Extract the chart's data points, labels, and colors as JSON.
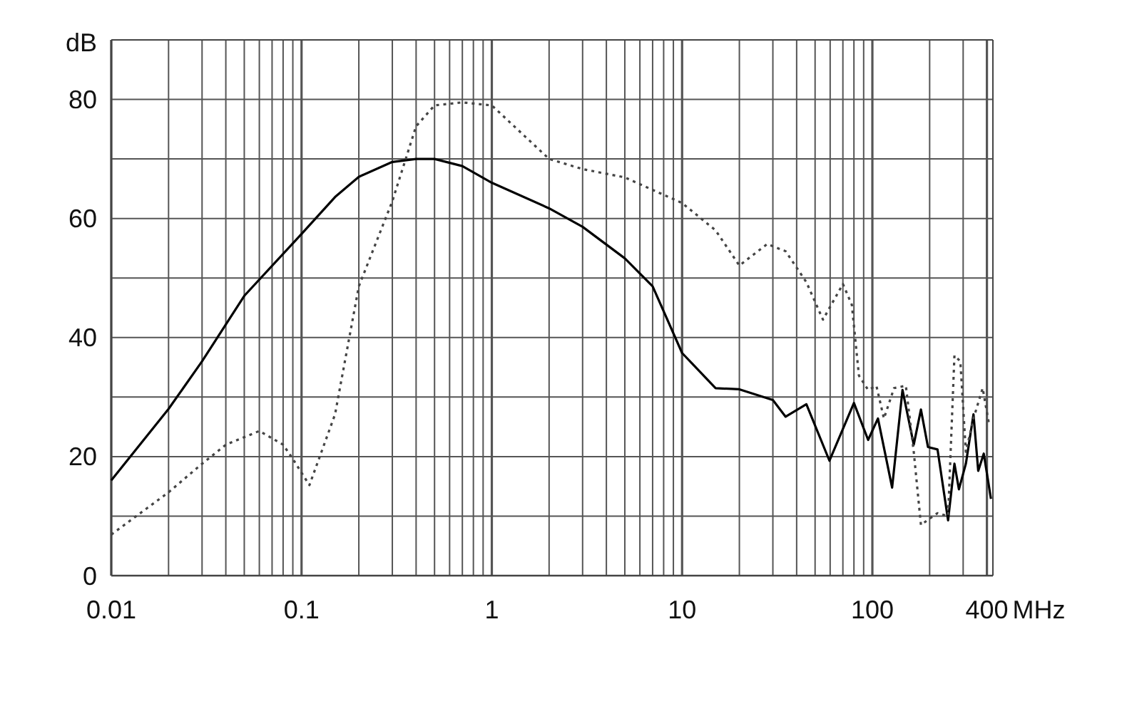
{
  "chart_data": {
    "type": "line",
    "xlabel": "MHz",
    "ylabel": "dB",
    "log": "x",
    "grid": true,
    "xlim": [
      0.01,
      430
    ],
    "ylim": [
      0,
      90
    ],
    "xticks": [
      0.01,
      {
        "value": 0.02,
        "label": null
      },
      {
        "value": 0.03,
        "label": null
      },
      {
        "value": 0.04,
        "label": null
      },
      {
        "value": 0.05,
        "label": null
      },
      {
        "value": 0.06,
        "label": null
      },
      {
        "value": 0.07,
        "label": null
      },
      {
        "value": 0.08,
        "label": null
      },
      {
        "value": 0.09,
        "label": null
      },
      0.1,
      {
        "value": 0.2,
        "label": null
      },
      {
        "value": 0.3,
        "label": null
      },
      {
        "value": 0.4,
        "label": null
      },
      {
        "value": 0.5,
        "label": null
      },
      {
        "value": 0.6,
        "label": null
      },
      {
        "value": 0.7,
        "label": null
      },
      {
        "value": 0.8,
        "label": null
      },
      {
        "value": 0.9,
        "label": null
      },
      1,
      {
        "value": 2,
        "label": null
      },
      {
        "value": 3,
        "label": null
      },
      {
        "value": 4,
        "label": null
      },
      {
        "value": 5,
        "label": null
      },
      {
        "value": 6,
        "label": null
      },
      {
        "value": 7,
        "label": null
      },
      {
        "value": 8,
        "label": null
      },
      {
        "value": 9,
        "label": null
      },
      10,
      {
        "value": 20,
        "label": null
      },
      {
        "value": 30,
        "label": null
      },
      {
        "value": 40,
        "label": null
      },
      {
        "value": 50,
        "label": null
      },
      {
        "value": 60,
        "label": null
      },
      {
        "value": 70,
        "label": null
      },
      {
        "value": 80,
        "label": null
      },
      {
        "value": 90,
        "label": null
      },
      100,
      {
        "value": 200,
        "label": null
      },
      {
        "value": 300,
        "label": null
      },
      400
    ],
    "yticks": [
      0,
      {
        "value": 10,
        "label": null
      },
      20,
      {
        "value": 30,
        "label": null
      },
      40,
      {
        "value": 50,
        "label": null
      },
      60,
      {
        "value": 70,
        "label": null
      },
      80,
      {
        "value": 90,
        "label": null
      }
    ],
    "series": [
      {
        "color": "#000000",
        "line_style": "solid",
        "x": [
          0.01,
          0.02,
          0.03,
          0.05,
          0.1,
          0.15,
          0.2,
          0.3,
          0.4,
          0.5,
          0.7,
          1,
          2,
          3,
          5,
          7,
          10,
          15,
          20,
          30,
          35,
          45,
          59.5,
          80,
          95,
          107,
          127,
          144,
          165,
          180,
          196,
          220,
          250,
          270,
          285,
          310,
          340,
          360,
          385,
          420
        ],
        "values": [
          16,
          28,
          36,
          47,
          57.4,
          63.6,
          67,
          69.5,
          70,
          70,
          68.8,
          66,
          61.7,
          58.6,
          53.3,
          48.6,
          37.4,
          31.5,
          31.3,
          29.5,
          26.7,
          28.8,
          19.3,
          29,
          22.8,
          26.4,
          14.8,
          31.2,
          22,
          27.9,
          21.6,
          21.2,
          9.3,
          18.8,
          14.5,
          18.8,
          27.1,
          17.6,
          20.5,
          12.9
        ]
      },
      {
        "color": "#444444",
        "line_style": "dotted",
        "x": [
          0.01,
          0.02,
          0.03,
          0.04,
          0.06,
          0.08,
          0.09,
          0.11,
          0.15,
          0.2,
          0.3,
          0.4,
          0.5,
          0.7,
          1,
          2,
          3,
          5,
          7,
          10,
          15,
          20,
          28,
          35,
          45,
          55,
          70,
          78,
          85,
          95,
          105,
          115,
          130,
          150,
          165,
          180,
          200,
          220,
          250,
          270,
          290,
          310,
          340,
          380,
          410
        ],
        "values": [
          6.9,
          14,
          18.8,
          22,
          24.3,
          22,
          19.6,
          15.2,
          27.1,
          48.6,
          62.9,
          75.5,
          79,
          79.5,
          79,
          70,
          68.3,
          66.9,
          64.8,
          62.6,
          58,
          52.1,
          55.7,
          54.5,
          49.3,
          43,
          49,
          45.5,
          33.6,
          31.2,
          31.9,
          26.4,
          31.5,
          31.9,
          20.8,
          8.5,
          9.6,
          10.5,
          10,
          37,
          36,
          20.8,
          26.4,
          31.5,
          25.5
        ]
      }
    ]
  }
}
